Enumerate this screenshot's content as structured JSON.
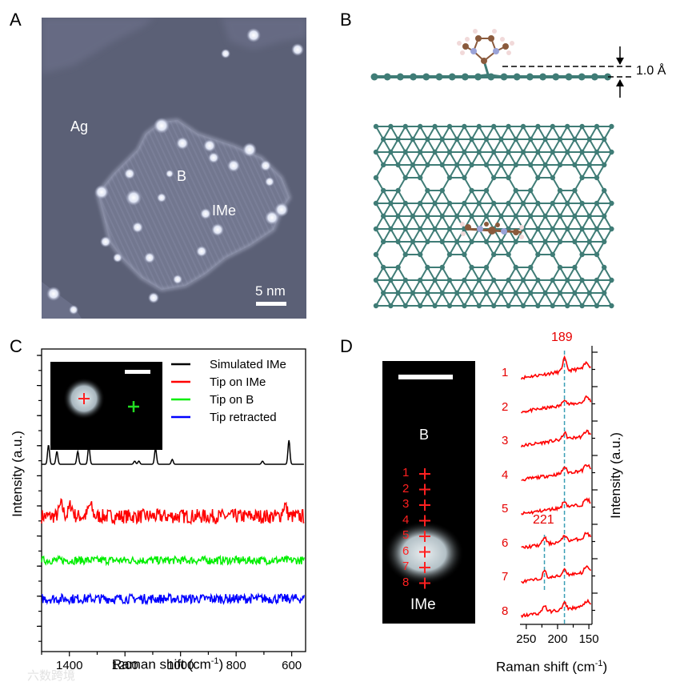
{
  "panels": {
    "A": {
      "label": "A",
      "ag_label": "Ag",
      "b_label": "B",
      "ime_label": "IMe",
      "scale_label": "5 nm",
      "colors": {
        "background": "#5d6278",
        "island": "#6e7390",
        "adatom": "#eef2ff"
      }
    },
    "B": {
      "label": "B",
      "height_label": "1.0 Å",
      "colors": {
        "lattice": "#3f7c76",
        "carbon": "#8a5a3c",
        "nitrogen": "#9aa3d8",
        "hydrogen": "#f1d9d9"
      }
    },
    "C": {
      "label": "C",
      "legend": [
        {
          "name": "Simulated IMe",
          "color": "#000000"
        },
        {
          "name": "Tip on IMe",
          "color": "#ff0000"
        },
        {
          "name": "Tip on B",
          "color": "#00ee00"
        },
        {
          "name": "Tip retracted",
          "color": "#0000ff"
        }
      ],
      "y_axis_label": "Intensity (a.u.)",
      "x_axis_label": "Raman shift (cm",
      "x_axis_sup": "-1",
      "x_axis_close": ")",
      "x_ticks": [
        "1400",
        "1200",
        "1000",
        "800",
        "600"
      ]
    },
    "D": {
      "label": "D",
      "b_label": "B",
      "ime_label": "IMe",
      "position_numbers": [
        "1",
        "2",
        "3",
        "4",
        "5",
        "6",
        "7",
        "8"
      ],
      "peak_189": "189",
      "peak_221": "221",
      "y_axis_label": "Intensity (a.u.)",
      "x_axis_label": "Raman shift (cm",
      "x_axis_sup": "-1",
      "x_axis_close": ")",
      "x_ticks": [
        "250",
        "200",
        "150"
      ],
      "colors": {
        "spectra": "#ff0000",
        "numbers": "#e60000",
        "guide": "#3a9fb5"
      }
    }
  },
  "watermark": "六数跨境",
  "chart_data": [
    {
      "type": "line",
      "panel": "C",
      "xlabel": "Raman shift (cm-1)",
      "ylabel": "Intensity (a.u.)",
      "xlim": [
        1500,
        550
      ],
      "x_reversed": true,
      "series": [
        {
          "name": "Simulated IMe",
          "color": "#000000",
          "peaks": [
            1475,
            1445,
            1370,
            1330,
            1165,
            1150,
            1090,
            1030,
            705,
            610
          ]
        },
        {
          "name": "Tip on IMe",
          "color": "#ff0000",
          "noisy": true,
          "peaks": [
            1430,
            1395,
            1325,
            625
          ]
        },
        {
          "name": "Tip on B",
          "color": "#00ee00",
          "noisy": true,
          "peaks": []
        },
        {
          "name": "Tip retracted",
          "color": "#0000ff",
          "noisy": true,
          "peaks": []
        }
      ]
    },
    {
      "type": "line",
      "panel": "D",
      "xlabel": "Raman shift (cm-1)",
      "ylabel": "Intensity (a.u.)",
      "xlim": [
        260,
        145
      ],
      "x_reversed": true,
      "series_names": [
        "1",
        "2",
        "3",
        "4",
        "5",
        "6",
        "7",
        "8"
      ],
      "peaks": [
        189,
        221
      ]
    }
  ]
}
